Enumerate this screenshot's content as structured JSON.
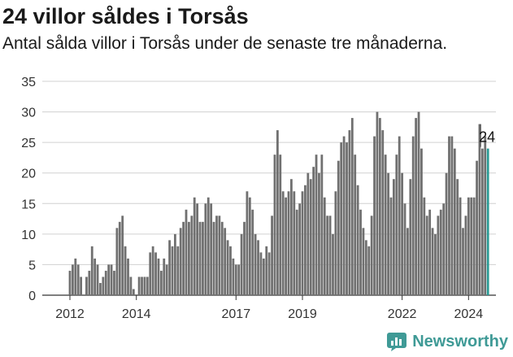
{
  "header": {
    "title": "24 villor såldes i Torsås",
    "subtitle": "Antal sålda villor i Torsås under de senaste tre månaderna."
  },
  "brand": {
    "name": "Newsworthy",
    "icon": "bar-chart-logo-icon",
    "color": "#3f9a96"
  },
  "colors": {
    "bar": "#707070",
    "highlight": "#2a9a94",
    "grid": "#d0d0d0"
  },
  "chart_data": {
    "type": "bar",
    "title": "24 villor såldes i Torsås",
    "subtitle": "Antal sålda villor i Torsås under de senaste tre månaderna.",
    "ylim": [
      0,
      35
    ],
    "yticks": [
      0,
      5,
      10,
      15,
      20,
      25,
      30,
      35
    ],
    "xticks": [
      "2012",
      "2014",
      "2017",
      "2019",
      "2022",
      "2024"
    ],
    "xtick_months": [
      "2012-01",
      "2014-01",
      "2017-01",
      "2019-01",
      "2022-01",
      "2024-01"
    ],
    "grid": true,
    "categories": [
      "2012-01",
      "2012-02",
      "2012-03",
      "2012-04",
      "2012-05",
      "2012-06",
      "2012-07",
      "2012-08",
      "2012-09",
      "2012-10",
      "2012-11",
      "2012-12",
      "2013-01",
      "2013-02",
      "2013-03",
      "2013-04",
      "2013-05",
      "2013-06",
      "2013-07",
      "2013-08",
      "2013-09",
      "2013-10",
      "2013-11",
      "2013-12",
      "2014-01",
      "2014-02",
      "2014-03",
      "2014-04",
      "2014-05",
      "2014-06",
      "2014-07",
      "2014-08",
      "2014-09",
      "2014-10",
      "2014-11",
      "2014-12",
      "2015-01",
      "2015-02",
      "2015-03",
      "2015-04",
      "2015-05",
      "2015-06",
      "2015-07",
      "2015-08",
      "2015-09",
      "2015-10",
      "2015-11",
      "2015-12",
      "2016-01",
      "2016-02",
      "2016-03",
      "2016-04",
      "2016-05",
      "2016-06",
      "2016-07",
      "2016-08",
      "2016-09",
      "2016-10",
      "2016-11",
      "2016-12",
      "2017-01",
      "2017-02",
      "2017-03",
      "2017-04",
      "2017-05",
      "2017-06",
      "2017-07",
      "2017-08",
      "2017-09",
      "2017-10",
      "2017-11",
      "2017-12",
      "2018-01",
      "2018-02",
      "2018-03",
      "2018-04",
      "2018-05",
      "2018-06",
      "2018-07",
      "2018-08",
      "2018-09",
      "2018-10",
      "2018-11",
      "2018-12",
      "2019-01",
      "2019-02",
      "2019-03",
      "2019-04",
      "2019-05",
      "2019-06",
      "2019-07",
      "2019-08",
      "2019-09",
      "2019-10",
      "2019-11",
      "2019-12",
      "2020-01",
      "2020-02",
      "2020-03",
      "2020-04",
      "2020-05",
      "2020-06",
      "2020-07",
      "2020-08",
      "2020-09",
      "2020-10",
      "2020-11",
      "2020-12",
      "2021-01",
      "2021-02",
      "2021-03",
      "2021-04",
      "2021-05",
      "2021-06",
      "2021-07",
      "2021-08",
      "2021-09",
      "2021-10",
      "2021-11",
      "2021-12",
      "2022-01",
      "2022-02",
      "2022-03",
      "2022-04",
      "2022-05",
      "2022-06",
      "2022-07",
      "2022-08",
      "2022-09",
      "2022-10",
      "2022-11",
      "2022-12",
      "2023-01",
      "2023-02",
      "2023-03",
      "2023-04",
      "2023-05",
      "2023-06",
      "2023-07",
      "2023-08",
      "2023-09",
      "2023-10",
      "2023-11",
      "2023-12",
      "2024-01",
      "2024-02",
      "2024-03",
      "2024-04",
      "2024-05",
      "2024-06",
      "2024-07",
      "2024-08",
      "2024-09",
      "2024-10",
      "2024-11",
      "2024-12"
    ],
    "values": [
      4,
      5,
      6,
      5,
      3,
      0,
      3,
      4,
      8,
      6,
      5,
      2,
      3,
      4,
      5,
      5,
      4,
      11,
      12,
      13,
      8,
      6,
      3,
      1,
      0,
      3,
      3,
      3,
      3,
      7,
      8,
      7,
      6,
      4,
      6,
      5,
      9,
      8,
      10,
      8,
      11,
      12,
      14,
      12,
      13,
      16,
      15,
      12,
      12,
      15,
      16,
      15,
      12,
      13,
      13,
      12,
      11,
      9,
      8,
      6,
      5,
      5,
      10,
      12,
      17,
      16,
      14,
      10,
      9,
      7,
      6,
      8,
      7,
      13,
      23,
      27,
      23,
      17,
      16,
      17,
      19,
      17,
      14,
      15,
      17,
      18,
      20,
      19,
      21,
      23,
      20,
      23,
      16,
      13,
      13,
      10,
      17,
      22,
      25,
      26,
      25,
      27,
      29,
      23,
      18,
      14,
      11,
      9,
      8,
      13,
      26,
      30,
      29,
      27,
      23,
      20,
      16,
      19,
      23,
      26,
      20,
      15,
      11,
      19,
      26,
      29,
      30,
      24,
      16,
      13,
      14,
      11,
      10,
      13,
      14,
      15,
      20,
      26,
      26,
      24,
      19,
      16,
      11,
      13,
      16,
      16,
      16,
      22,
      28,
      24,
      26,
      24,
      0,
      0,
      0,
      0
    ],
    "highlight_index": 151,
    "annotation": {
      "index": 151,
      "text": "24"
    }
  }
}
